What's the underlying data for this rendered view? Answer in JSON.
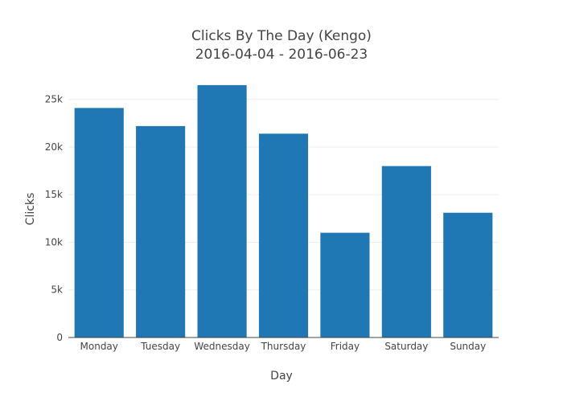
{
  "chart_data": {
    "type": "bar",
    "title": "Clicks By The Day (Kengo)",
    "subtitle": "2016-04-04 - 2016-06-23",
    "xlabel": "Day",
    "ylabel": "Clicks",
    "categories": [
      "Monday",
      "Tuesday",
      "Wednesday",
      "Thursday",
      "Friday",
      "Saturday",
      "Sunday"
    ],
    "values": [
      24100,
      22200,
      26500,
      21400,
      11000,
      18000,
      13100
    ],
    "ylim": [
      0,
      27000
    ],
    "yticks": [
      0,
      5000,
      10000,
      15000,
      20000,
      25000
    ],
    "ytick_labels": [
      "0",
      "5k",
      "10k",
      "15k",
      "20k",
      "25k"
    ],
    "grid": true,
    "legend": "none",
    "colors": {
      "bar": "#1f77b4",
      "grid": "#eeeeee",
      "axis": "#444444",
      "text": "#444444"
    }
  }
}
